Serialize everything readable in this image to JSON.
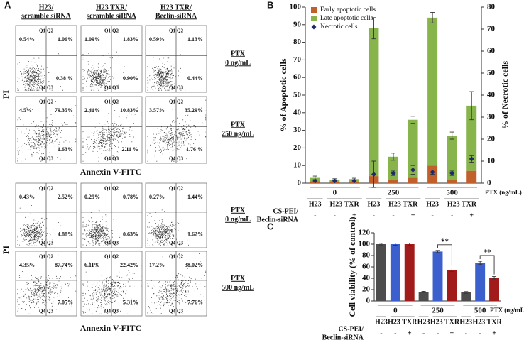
{
  "panel_a": {
    "label": "A",
    "columns": [
      [
        "H23/",
        "scramble siRNA"
      ],
      [
        "H23 TXR/",
        "scramble siRNA"
      ],
      [
        "H23 TXR/",
        "Beclin-siRNA"
      ]
    ],
    "y_label": "PI",
    "x_label": "Annexin V-FITC",
    "quadrants": [
      "Q1",
      "Q2",
      "Q4",
      "Q3"
    ],
    "blocks": [
      {
        "rows": [
          {
            "label": [
              "PTX",
              "0 ng/mL"
            ],
            "plots": [
              [
                "0.54%",
                "1.06%",
                "0.38 %"
              ],
              [
                "1.09%",
                "1.83%",
                "0.90%"
              ],
              [
                "0.59%",
                "1.13%",
                "0.44%"
              ]
            ]
          },
          {
            "label": [
              "PTX",
              "250 ng/mL"
            ],
            "plots": [
              [
                "4.5%",
                "79.35%",
                "1.63%"
              ],
              [
                "2.41%",
                "10.83%",
                "2.11 %"
              ],
              [
                "3.57%",
                "35.29%",
                "1.76 %"
              ]
            ]
          }
        ]
      },
      {
        "rows": [
          {
            "label": [
              "PTX",
              "0 ng/mL"
            ],
            "plots": [
              [
                "0.43%",
                "2.52%",
                "4.88%"
              ],
              [
                "0.29%",
                "0.78%",
                "0.63%"
              ],
              [
                "0.27%",
                "1.44%",
                "1.62%"
              ]
            ]
          },
          {
            "label": [
              "PTX",
              "500 ng/mL"
            ],
            "plots": [
              [
                "4.35%",
                "87.74%",
                "7.05%"
              ],
              [
                "6.11%",
                "22.42%",
                "5.31%"
              ],
              [
                "17.2%",
                "38.02%",
                "7.76%"
              ]
            ]
          }
        ]
      }
    ]
  },
  "chart_data": [
    {
      "type": "bar",
      "label": "B",
      "ylabel": "% of Apoptotic cells",
      "y2label": "% of Necrotic cells",
      "ylim": [
        0,
        100
      ],
      "yticks": [
        0,
        10,
        20,
        30,
        40,
        50,
        60,
        70,
        80,
        90,
        100
      ],
      "y2lim": [
        0,
        80
      ],
      "y2ticks": [
        0,
        10,
        20,
        30,
        40,
        50,
        60,
        70,
        80
      ],
      "groups": [
        "0",
        "250",
        "500"
      ],
      "group_axis_label": "PTX  (ng/mL)",
      "categories": [
        "H23",
        "H23 TXR",
        null,
        "H23",
        "H23 TXR",
        null,
        "H23",
        "H23 TXR",
        null
      ],
      "condition_label": [
        "CS-PEI/",
        "Beclin-siRNA"
      ],
      "conditions": [
        "-",
        "-",
        "+",
        "-",
        "-",
        "+",
        "-",
        "-",
        "+"
      ],
      "legend": "top-left",
      "series": [
        {
          "name": "Early apoptotic cells",
          "color": "#c2602b",
          "values": [
            1,
            0.5,
            0.8,
            4,
            2,
            3,
            10,
            2,
            7
          ]
        },
        {
          "name": "Late apoptotic cells",
          "color": "#88b44c",
          "values": [
            2,
            1.5,
            1.5,
            84,
            13,
            33,
            84,
            25,
            37
          ],
          "errors": [
            1,
            0.5,
            0.5,
            6,
            2,
            2,
            3,
            2,
            8
          ]
        },
        {
          "name": "Necrotic cells",
          "color": "#1d2a66",
          "marker": "diamond",
          "axis": "y2",
          "values": [
            1,
            1,
            1,
            4,
            4.5,
            6,
            5,
            4.5,
            11
          ],
          "errors": [
            0.5,
            0.5,
            0.5,
            6,
            1,
            2,
            1,
            1,
            1.5
          ]
        }
      ]
    },
    {
      "type": "bar",
      "label": "C",
      "ylabel": "Cell viability  (% of control)",
      "ylim": [
        0,
        120
      ],
      "yticks": [
        0,
        20,
        40,
        60,
        80,
        100,
        120
      ],
      "groups": [
        "0",
        "250",
        "500"
      ],
      "group_axis_label": "PTX  (ng/mL)",
      "categories": [
        "H23",
        "H23 TXR",
        null,
        "H23",
        "H23 TXR",
        null,
        "H23",
        "H23 TXR",
        null
      ],
      "condition_label": [
        "CS-PEI/",
        "Beclin-siRNA"
      ],
      "conditions": [
        "-",
        "-",
        "+",
        "-",
        "-",
        "+",
        "-",
        "-",
        "+"
      ],
      "colors": [
        "#4d4d4d",
        "#3b5fcc",
        "#a11b1b",
        "#4d4d4d",
        "#3b5fcc",
        "#a11b1b",
        "#4d4d4d",
        "#3b5fcc",
        "#a11b1b"
      ],
      "values": [
        100,
        100,
        100,
        16,
        87,
        55,
        15,
        67,
        41
      ],
      "errors": [
        1.5,
        2,
        2,
        1,
        2,
        3,
        1.5,
        3,
        2
      ],
      "annotations": [
        {
          "text": "**"
        },
        {
          "text": "**"
        }
      ]
    }
  ]
}
